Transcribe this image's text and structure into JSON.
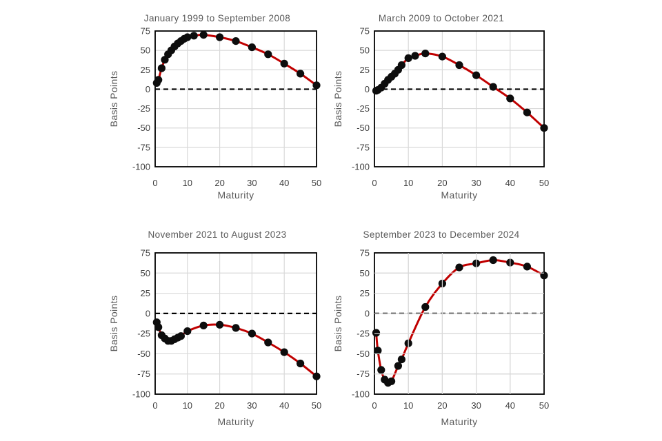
{
  "figure": {
    "background": "#ffffff"
  },
  "styles": {
    "curve_color": "#C00000",
    "marker_color": "#0d0d0d",
    "grid_color": "#D9D9D9",
    "frame_color": "#000000",
    "zero_line_color": "#000000",
    "title_color": "#595959",
    "tick_color": "#3f3f3f",
    "axis_label_color": "#595959"
  },
  "chart_data": [
    {
      "type": "scatter",
      "has_fit_line": true,
      "title": "January 1999 to September 2008",
      "xlabel": "Maturity",
      "ylabel": "Basis Points",
      "xlim": [
        0,
        50
      ],
      "ylim": [
        -100,
        75
      ],
      "x_ticks": [
        0,
        10,
        20,
        30,
        40,
        50
      ],
      "y_ticks": [
        75,
        50,
        25,
        0,
        -25,
        -50,
        -75,
        -100
      ],
      "zero_line_dashed": true,
      "grid": true,
      "grid_over_points": false,
      "x": [
        0.5,
        1,
        2,
        3,
        4,
        5,
        6,
        7,
        8,
        9,
        10,
        12,
        15,
        20,
        25,
        30,
        35,
        40,
        45,
        50
      ],
      "y": [
        8,
        12,
        27,
        38,
        45,
        50,
        55,
        59,
        62,
        65,
        67,
        69,
        70,
        67,
        62,
        54,
        45,
        33,
        20,
        5
      ]
    },
    {
      "type": "scatter",
      "has_fit_line": true,
      "title": "March 2009 to October 2021",
      "xlabel": "Maturity",
      "ylabel": "Basis Points",
      "xlim": [
        0,
        50
      ],
      "ylim": [
        -100,
        75
      ],
      "x_ticks": [
        0,
        10,
        20,
        30,
        40,
        50
      ],
      "y_ticks": [
        75,
        50,
        25,
        0,
        -25,
        -50,
        -75,
        -100
      ],
      "zero_line_dashed": true,
      "grid": true,
      "grid_over_points": false,
      "x": [
        0.5,
        1,
        2,
        3,
        4,
        5,
        6,
        7,
        8,
        10,
        12,
        15,
        20,
        25,
        30,
        35,
        40,
        45,
        50
      ],
      "y": [
        -2,
        -1,
        2,
        7,
        12,
        16,
        20,
        25,
        31,
        40,
        43,
        46,
        42,
        31,
        18,
        3,
        -12,
        -30,
        -50
      ]
    },
    {
      "type": "scatter",
      "has_fit_line": true,
      "title": "November 2021 to August 2023",
      "xlabel": "Maturity",
      "ylabel": "Basis Points",
      "xlim": [
        0,
        50
      ],
      "ylim": [
        -100,
        75
      ],
      "x_ticks": [
        0,
        10,
        20,
        30,
        40,
        50
      ],
      "y_ticks": [
        75,
        50,
        25,
        0,
        -25,
        -50,
        -75,
        -100
      ],
      "zero_line_dashed": true,
      "grid": true,
      "grid_over_points": false,
      "x": [
        0.5,
        1,
        2,
        3,
        4,
        5,
        6,
        7,
        8,
        10,
        15,
        20,
        25,
        30,
        35,
        40,
        45,
        50
      ],
      "y": [
        -11,
        -17,
        -27,
        -31,
        -34,
        -34,
        -32,
        -30,
        -28,
        -22,
        -15,
        -14,
        -18,
        -25,
        -36,
        -48,
        -62,
        -78
      ]
    },
    {
      "type": "scatter",
      "has_fit_line": true,
      "title": "September 2023 to December 2024",
      "xlabel": "Maturity",
      "ylabel": "Basis Points",
      "xlim": [
        0,
        50
      ],
      "ylim": [
        -100,
        75
      ],
      "x_ticks": [
        0,
        10,
        20,
        30,
        40,
        50
      ],
      "y_ticks": [
        75,
        50,
        25,
        0,
        -25,
        -50,
        -75,
        -100
      ],
      "zero_line_dashed": true,
      "grid": true,
      "grid_over_points": true,
      "x": [
        0.5,
        1,
        2,
        3,
        4,
        5,
        7,
        8,
        10,
        15,
        20,
        25,
        30,
        35,
        40,
        45,
        50
      ],
      "y": [
        -24,
        -46,
        -70,
        -82,
        -86,
        -84,
        -65,
        -57,
        -37,
        8,
        37,
        57,
        62,
        66,
        63,
        58,
        47
      ]
    }
  ]
}
